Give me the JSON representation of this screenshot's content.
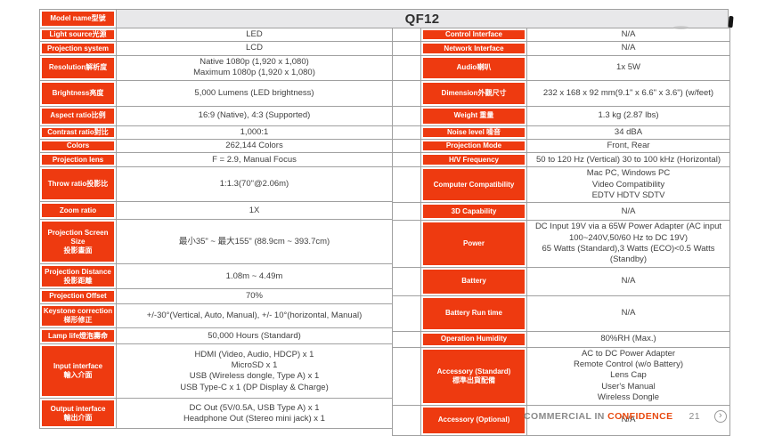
{
  "header": {
    "model_label": "Model name型號",
    "model_value": "QF12"
  },
  "spec": {
    "left_rows": [
      {
        "label": "Light source光源",
        "value": "LED"
      },
      {
        "label": "Projection system",
        "value": "LCD"
      },
      {
        "label": "Resolution解析度",
        "value": "Native 1080p (1,920 x 1,080)\nMaximum 1080p (1,920 x 1,080)"
      },
      {
        "label": "Brightness亮度",
        "value": "5,000 Lumens (LED brightness)"
      },
      {
        "label": "Aspect ratio比例",
        "value": "16:9 (Native), 4:3 (Supported)"
      },
      {
        "label": "Contrast ratio對比",
        "value": "1,000:1"
      },
      {
        "label": "Colors",
        "value": "262,144 Colors"
      },
      {
        "label": "Projection lens",
        "value": "F = 2.9, Manual Focus"
      },
      {
        "label": "Throw ratio投影比",
        "value": "1:1.3(70\"@2.06m)"
      },
      {
        "label": "Zoom ratio",
        "value": "1X"
      },
      {
        "label": "Projection Screen Size\n投影畫面",
        "value": "最小35\" ~ 最大155\" (88.9cm ~ 393.7cm)"
      },
      {
        "label": "Projection Distance\n投影距離",
        "value": "1.08m ~ 4.49m"
      },
      {
        "label": "Projection Offset",
        "value": "70%"
      },
      {
        "label": "Keystone correction\n梯形修正",
        "value": "+/-30°(Vertical, Auto, Manual), +/- 10°(horizontal, Manual)"
      },
      {
        "label": "Lamp life燈泡壽命",
        "value": "50,000 Hours (Standard)"
      },
      {
        "label": "Input interface\n輸入介面",
        "value": "HDMI (Video, Audio, HDCP) x 1\nMicroSD x 1\nUSB (Wireless dongle, Type A) x 1\nUSB Type-C x 1 (DP Display & Charge)"
      },
      {
        "label": "Output interface\n輸出介面",
        "value": "DC Out (5V/0.5A,  USB Type A) x 1\nHeadphone Out (Stereo mini jack) x 1"
      }
    ],
    "right_rows": [
      {
        "label": "Control Interface",
        "value": "N/A"
      },
      {
        "label": "Network Interface",
        "value": "N/A"
      },
      {
        "label": "Audio喇叭",
        "value": "1x 5W"
      },
      {
        "label": "Dimension外觀尺寸",
        "value": "232 x 168 x 92 mm(9.1\" x 6.6\" x 3.6\") (w/feet)"
      },
      {
        "label": "Weight 重量",
        "value": "1.3 kg (2.87 lbs)"
      },
      {
        "label": "Noise level 噪音",
        "value": "34 dBA"
      },
      {
        "label": "Projection Mode",
        "value": "Front, Rear"
      },
      {
        "label": "H/V Frequency",
        "value": "50 to 120 Hz (Vertical) 30 to 100 kHz (Horizontal)"
      },
      {
        "label": "Computer Compatibility",
        "value": "Mac PC, Windows PC\nVideo Compatibility\nEDTV HDTV SDTV"
      },
      {
        "label": "3D Capability",
        "value": "N/A"
      },
      {
        "label": "Power",
        "value": "DC Input 19V via a 65W Power Adapter (AC input\n100~240V,50/60 Hz to  DC 19V)\n65 Watts (Standard),3 Watts (ECO)<0.5 Watts\n(Standby)"
      },
      {
        "label": "Battery",
        "value": "N/A"
      },
      {
        "label": "Battery Run time",
        "value": "N/A"
      },
      {
        "label": "Operation Humidity",
        "value": "80%RH (Max.)"
      },
      {
        "label": "Accessory (Standard)\n標準出貨配備",
        "value": "AC to DC Power Adapter\nRemote Control (w/o Battery)\nLens Cap\nUser's Manual\nWireless Dongle"
      },
      {
        "label": "Accessory (Optional)",
        "value": "N/A"
      }
    ]
  },
  "footer": {
    "classification_prefix": "COMMERCIAL IN ",
    "classification_highlight": "CONFIDENCE",
    "page_number": "21",
    "next_icon_glyph": "›"
  },
  "colors": {
    "accent": "#ee3a10",
    "header_bg": "#e8e8ea",
    "border": "#a0a0a0",
    "text_dark": "#3f3f3f",
    "footer_text": "#8a8a8a",
    "footer_highlight": "#e8490f"
  }
}
